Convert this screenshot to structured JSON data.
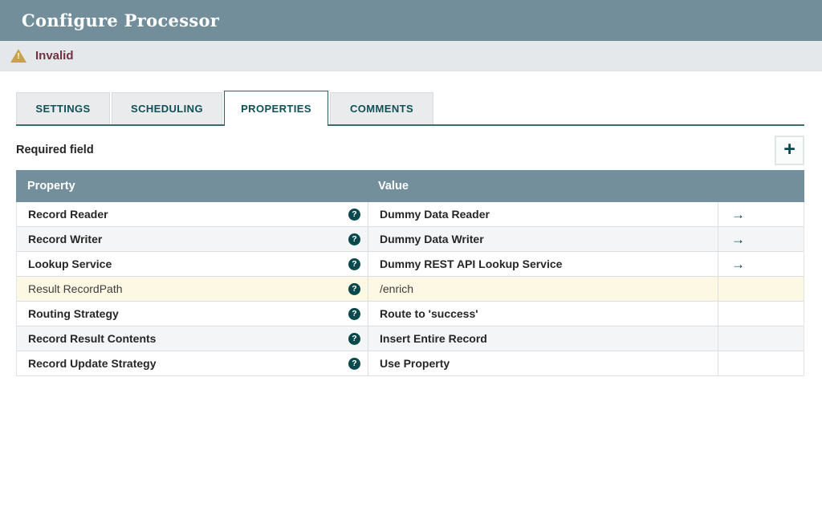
{
  "title": "Configure Processor",
  "status_bar": {
    "label": "Invalid"
  },
  "tabs": {
    "settings": "SETTINGS",
    "scheduling": "SCHEDULING",
    "properties": "PROPERTIES",
    "comments": "COMMENTS",
    "active": "PROPERTIES"
  },
  "toolbar": {
    "required_field_label": "Required field"
  },
  "icons": {
    "help": "?",
    "add": "+",
    "goto": "→",
    "warning": "!"
  },
  "table": {
    "headers": {
      "property": "Property",
      "value": "Value"
    },
    "rows": [
      {
        "property": "Record Reader",
        "value": "Dummy Data Reader",
        "modified": false,
        "has_goto": true
      },
      {
        "property": "Record Writer",
        "value": "Dummy Data Writer",
        "modified": false,
        "has_goto": true
      },
      {
        "property": "Lookup Service",
        "value": "Dummy REST API Lookup Service",
        "modified": false,
        "has_goto": true
      },
      {
        "property": "Result RecordPath",
        "value": "/enrich",
        "modified": true,
        "has_goto": false
      },
      {
        "property": "Routing Strategy",
        "value": "Route to 'success'",
        "modified": false,
        "has_goto": false
      },
      {
        "property": "Record Result Contents",
        "value": "Insert Entire Record",
        "modified": false,
        "has_goto": false
      },
      {
        "property": "Record Update Strategy",
        "value": "Use Property",
        "modified": false,
        "has_goto": false
      }
    ]
  },
  "colors": {
    "titlebar_bg": "#728e9b",
    "table_header_bg": "#748f9c",
    "teal_accent": "#07494c",
    "status_bar_bg": "#e5e8eb",
    "invalid_text": "#6f3341",
    "warning_icon": "#c7a34b",
    "row_alt_bg": "#f3f5f6",
    "row_modified_bg": "#fdf8e3"
  }
}
